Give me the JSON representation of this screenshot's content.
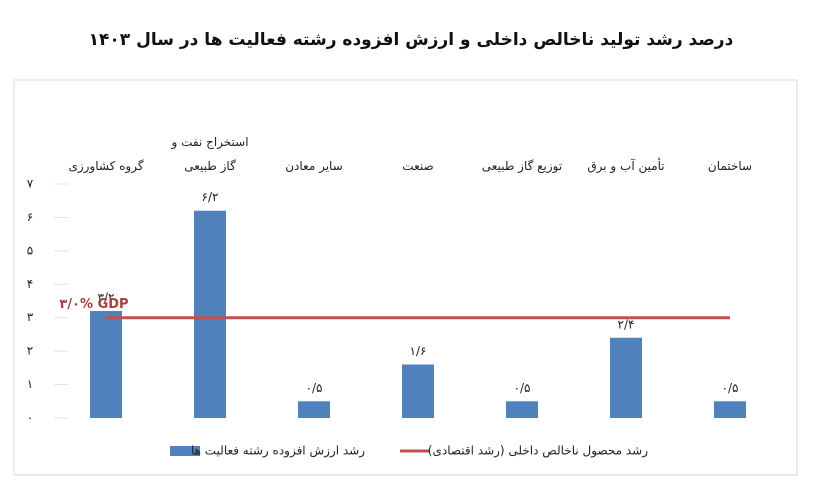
{
  "chart_data": {
    "type": "bar",
    "title": "درصد رشد تولید ناخالص داخلی و ارزش افزوده رشته فعالیت ها در سال ۱۴۰۳",
    "categories": [
      "گروه کشاورزی",
      "استخراج نفت و گاز طبیعی",
      "سایر معادن",
      "صنعت",
      "توزیع گاز طبیعی",
      "تأمین آب و برق",
      "ساختمان"
    ],
    "series": [
      {
        "name": "رشد ارزش افزوده رشته فعالیت ها",
        "color": "#4f81bd",
        "type": "bar",
        "values": [
          3.2,
          6.2,
          0.5,
          1.6,
          0.5,
          2.4,
          0.5
        ],
        "value_labels": [
          "۳/۲",
          "۶/۲",
          "۰/۵",
          "۱/۶",
          "۰/۵",
          "۲/۴",
          "۰/۵"
        ]
      },
      {
        "name": "رشد محصول ناخالص داخلی (رشد اقتصادی)",
        "color": "#c0504d",
        "type": "line",
        "values": [
          3.0,
          3.0,
          3.0,
          3.0,
          3.0,
          3.0,
          3.0
        ]
      }
    ],
    "annotation": "۳/۰%  GDP",
    "ylim": [
      0,
      7
    ],
    "yticks": [
      {
        "value": 0,
        "label": "۰"
      },
      {
        "value": 1,
        "label": "۱"
      },
      {
        "value": 2,
        "label": "۲"
      },
      {
        "value": 3,
        "label": "۳"
      },
      {
        "value": 4,
        "label": "۴"
      },
      {
        "value": 5,
        "label": "۵"
      },
      {
        "value": 6,
        "label": "۶"
      },
      {
        "value": 7,
        "label": "۷"
      }
    ],
    "legend": "bottom"
  }
}
